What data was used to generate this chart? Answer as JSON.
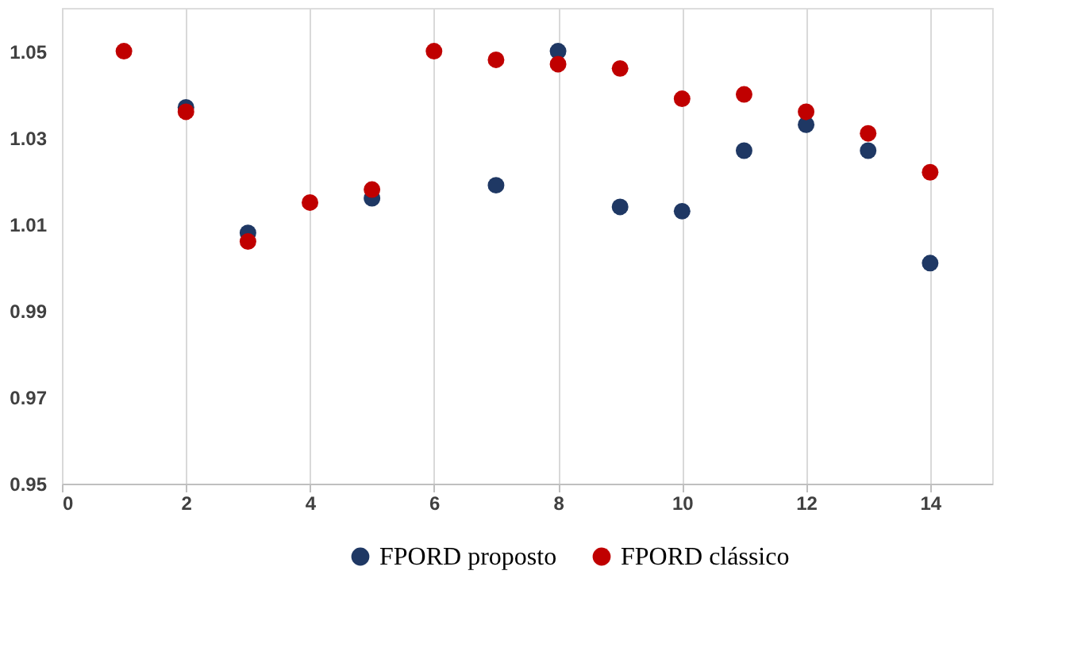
{
  "chart_data": {
    "type": "scatter",
    "x": [
      1,
      2,
      3,
      4,
      5,
      6,
      7,
      8,
      9,
      10,
      11,
      12,
      13,
      14
    ],
    "series": [
      {
        "name": "FPORD proposto",
        "color": "#1f3864",
        "values": [
          null,
          1.037,
          1.008,
          null,
          1.016,
          null,
          1.019,
          1.05,
          1.014,
          1.013,
          1.027,
          1.033,
          1.027,
          1.001
        ]
      },
      {
        "name": "FPORD clássico",
        "color": "#c00000",
        "values": [
          1.05,
          1.036,
          1.006,
          1.015,
          1.018,
          1.05,
          1.048,
          1.047,
          1.046,
          1.039,
          1.04,
          1.036,
          1.031,
          1.022
        ]
      }
    ],
    "xlim": [
      0,
      15
    ],
    "xticks": [
      0,
      2,
      4,
      6,
      8,
      10,
      12,
      14
    ],
    "ylim": [
      0.95,
      1.06
    ],
    "yticks": [
      0.95,
      0.97,
      0.99,
      1.01,
      1.03,
      1.05
    ],
    "grid": "x",
    "legend": "bottom",
    "marker": "circle"
  }
}
